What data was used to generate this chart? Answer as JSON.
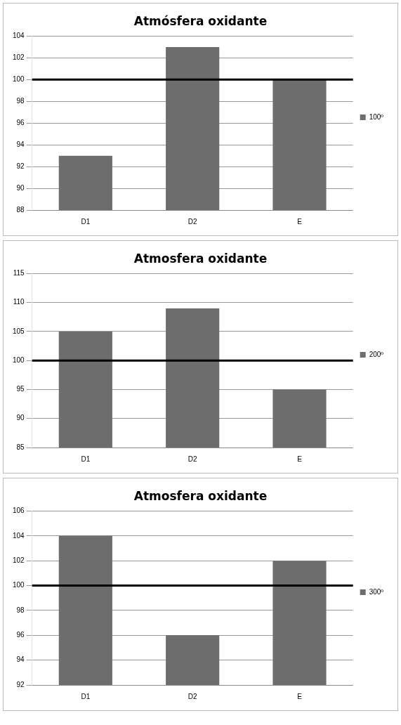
{
  "chart_data": [
    {
      "type": "bar",
      "title": "Atmósfera oxidante",
      "categories": [
        "D1",
        "D2",
        "E"
      ],
      "series": [
        {
          "name": "100º",
          "color": "#6d6d6d",
          "values": [
            93,
            103,
            100
          ]
        }
      ],
      "ylim": [
        88,
        104
      ],
      "yticks": [
        88,
        90,
        92,
        94,
        96,
        98,
        100,
        102,
        104
      ],
      "grid": "y",
      "legend": "right",
      "ref_lines": [
        {
          "axis": "y",
          "value": 100,
          "color": "#000000"
        }
      ]
    },
    {
      "type": "bar",
      "title": "Atmosfera oxidante",
      "categories": [
        "D1",
        "D2",
        "E"
      ],
      "series": [
        {
          "name": "200º",
          "color": "#6d6d6d",
          "values": [
            105,
            109,
            95
          ]
        }
      ],
      "ylim": [
        85,
        115
      ],
      "yticks": [
        85,
        90,
        95,
        100,
        105,
        110,
        115
      ],
      "grid": "y",
      "legend": "right",
      "ref_lines": [
        {
          "axis": "y",
          "value": 100,
          "color": "#000000"
        }
      ]
    },
    {
      "type": "bar",
      "title": "Atmosfera oxidante",
      "categories": [
        "D1",
        "D2",
        "E"
      ],
      "series": [
        {
          "name": "300º",
          "color": "#6d6d6d",
          "values": [
            104,
            96,
            102
          ]
        }
      ],
      "ylim": [
        92,
        106
      ],
      "yticks": [
        92,
        94,
        96,
        98,
        100,
        102,
        104,
        106
      ],
      "grid": "y",
      "legend": "right",
      "ref_lines": [
        {
          "axis": "y",
          "value": 100,
          "color": "#000000"
        }
      ]
    }
  ]
}
